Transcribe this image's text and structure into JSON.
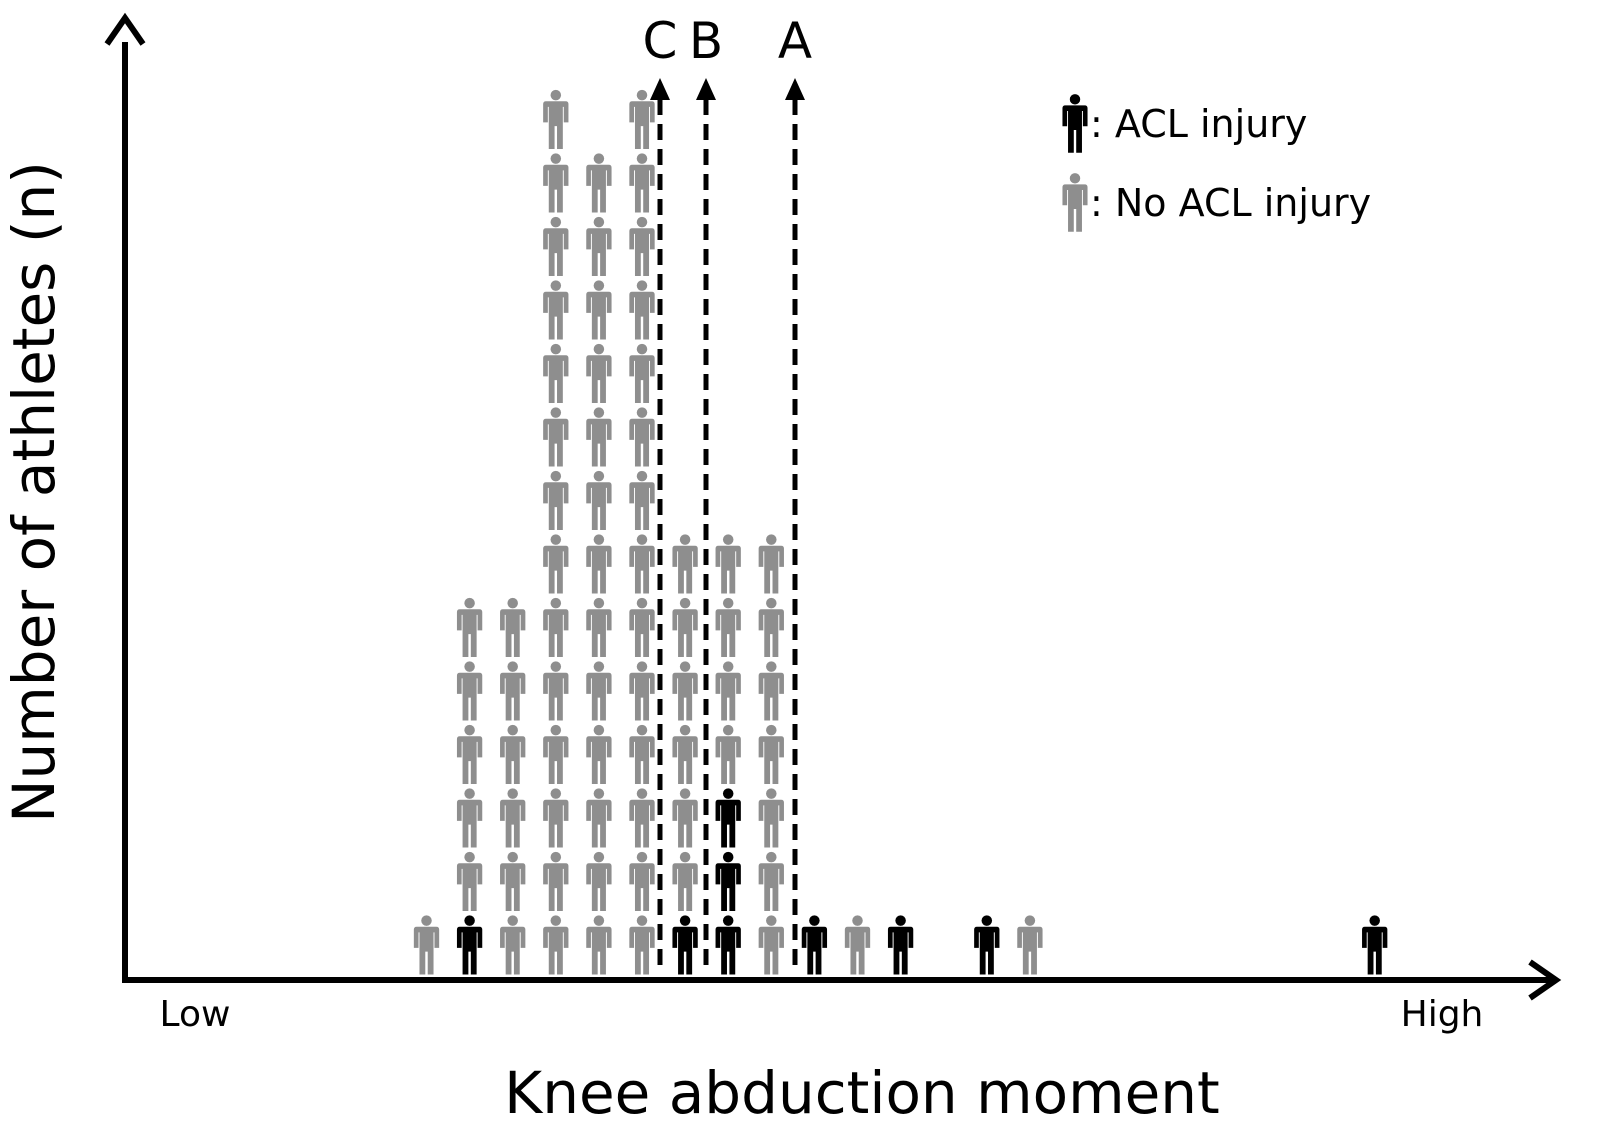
{
  "chart_data": {
    "type": "pictograph",
    "title": "",
    "xlabel": "Knee abduction moment",
    "ylabel": "Number of athletes (n)",
    "x_tick_labels": {
      "low": "Low",
      "high": "High"
    },
    "threshold_labels": [
      "C",
      "B",
      "A"
    ],
    "legend": {
      "placement": "top-right",
      "entries": [
        {
          "label": ": ACL injury",
          "color": "#000000"
        },
        {
          "label": ": No ACL injury",
          "color": "#8e8e8e"
        }
      ]
    },
    "colors": {
      "injury": "#000000",
      "no_injury": "#8e8e8e",
      "axis": "#000000"
    },
    "columns": [
      {
        "injured": 0,
        "uninjured": 0,
        "partial": 0.7
      },
      {
        "injured": 0,
        "uninjured": 0,
        "partial": 0.85
      },
      {
        "injured": 0,
        "uninjured": 0,
        "partial": 0.15
      },
      {
        "injured": 0,
        "uninjured": 0,
        "partial": 0.15
      },
      {
        "injured": 0,
        "uninjured": 0,
        "partial": 0.85
      },
      {
        "injured": 0,
        "uninjured": 1,
        "partial": 0.3
      },
      {
        "injured": 1,
        "uninjured": 5,
        "partial": 0.3
      },
      {
        "injured": 0,
        "uninjured": 6,
        "partial": 0.65
      },
      {
        "injured": 0,
        "uninjured": 14,
        "partial": 0
      },
      {
        "injured": 0,
        "uninjured": 13,
        "partial": 0.5
      },
      {
        "injured": 0,
        "uninjured": 14,
        "partial": 0
      },
      {
        "injured": 1,
        "uninjured": 6,
        "partial": 0
      },
      {
        "injured": 3,
        "uninjured": 4,
        "partial": 0
      },
      {
        "injured": 0,
        "uninjured": 7,
        "partial": 0.4
      },
      {
        "injured": 1,
        "uninjured": 0,
        "partial": 0.5
      },
      {
        "injured": 0,
        "uninjured": 1,
        "partial": 0
      },
      {
        "injured": 1,
        "uninjured": 0,
        "partial": 0
      },
      {
        "injured": 0,
        "uninjured": 0,
        "partial": 0.7
      },
      {
        "injured": 1,
        "uninjured": 0,
        "partial": 0
      },
      {
        "injured": 0,
        "uninjured": 1,
        "partial": 0.3
      },
      {
        "injured": 0,
        "uninjured": 0,
        "partial": 0
      },
      {
        "injured": 0,
        "uninjured": 0,
        "partial": 0.15
      },
      {
        "injured": 0,
        "uninjured": 0,
        "partial": 0
      },
      {
        "injured": 0,
        "uninjured": 0,
        "partial": 0
      },
      {
        "injured": 0,
        "uninjured": 0,
        "partial": 0
      },
      {
        "injured": 0,
        "uninjured": 0,
        "partial": 0.15
      },
      {
        "injured": 0,
        "uninjured": 0,
        "partial": 0
      },
      {
        "injured": 1,
        "uninjured": 0,
        "partial": 0
      }
    ],
    "grid": false,
    "axes_arrows": true
  }
}
